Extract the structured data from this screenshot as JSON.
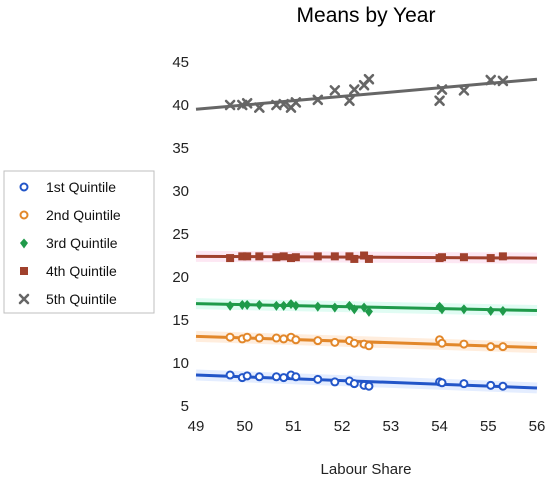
{
  "chart_data": {
    "type": "scatter",
    "title": "Means by Year",
    "xlabel": "Labour Share",
    "ylabel": "",
    "xlim": [
      49,
      56
    ],
    "ylim": [
      5,
      45
    ],
    "xticks": [
      "49",
      "50",
      "51",
      "52",
      "53",
      "54",
      "55",
      "56"
    ],
    "yticks": [
      "5",
      "10",
      "15",
      "20",
      "25",
      "30",
      "35",
      "40",
      "45"
    ],
    "grid": false,
    "legend_position": "left",
    "series": [
      {
        "name": "1st Quintile",
        "marker": "circle-open",
        "color": "#2255c8",
        "trend": [
          [
            49,
            8.6
          ],
          [
            56,
            7.1
          ]
        ],
        "points": [
          [
            49.7,
            8.6
          ],
          [
            49.95,
            8.3
          ],
          [
            50.05,
            8.5
          ],
          [
            50.3,
            8.4
          ],
          [
            50.65,
            8.4
          ],
          [
            50.8,
            8.3
          ],
          [
            50.95,
            8.6
          ],
          [
            51.05,
            8.4
          ],
          [
            51.5,
            8.1
          ],
          [
            51.85,
            7.8
          ],
          [
            52.15,
            7.9
          ],
          [
            52.25,
            7.6
          ],
          [
            52.45,
            7.4
          ],
          [
            52.55,
            7.3
          ],
          [
            54.0,
            7.8
          ],
          [
            54.05,
            7.7
          ],
          [
            54.5,
            7.6
          ],
          [
            55.05,
            7.4
          ],
          [
            55.3,
            7.3
          ]
        ]
      },
      {
        "name": "2nd Quintile",
        "marker": "circle-open",
        "color": "#e2872a",
        "trend": [
          [
            49,
            13.1
          ],
          [
            56,
            11.8
          ]
        ],
        "points": [
          [
            49.7,
            13.0
          ],
          [
            49.95,
            12.8
          ],
          [
            50.05,
            13.0
          ],
          [
            50.3,
            12.9
          ],
          [
            50.65,
            12.9
          ],
          [
            50.8,
            12.8
          ],
          [
            50.95,
            13.0
          ],
          [
            51.05,
            12.7
          ],
          [
            51.5,
            12.6
          ],
          [
            51.85,
            12.4
          ],
          [
            52.15,
            12.6
          ],
          [
            52.25,
            12.3
          ],
          [
            52.45,
            12.2
          ],
          [
            52.55,
            12.0
          ],
          [
            54.0,
            12.7
          ],
          [
            54.05,
            12.3
          ],
          [
            54.5,
            12.2
          ],
          [
            55.05,
            11.9
          ],
          [
            55.3,
            11.9
          ]
        ]
      },
      {
        "name": "3rd Quintile",
        "marker": "diamond",
        "color": "#1f9a4a",
        "trend": [
          [
            49,
            16.9
          ],
          [
            56,
            16.1
          ]
        ],
        "points": [
          [
            49.7,
            16.7
          ],
          [
            49.95,
            16.8
          ],
          [
            50.05,
            16.8
          ],
          [
            50.3,
            16.8
          ],
          [
            50.65,
            16.7
          ],
          [
            50.8,
            16.7
          ],
          [
            50.95,
            16.9
          ],
          [
            51.05,
            16.7
          ],
          [
            51.5,
            16.6
          ],
          [
            51.85,
            16.5
          ],
          [
            52.15,
            16.7
          ],
          [
            52.25,
            16.3
          ],
          [
            52.45,
            16.5
          ],
          [
            52.55,
            16.0
          ],
          [
            54.0,
            16.6
          ],
          [
            54.05,
            16.3
          ],
          [
            54.5,
            16.3
          ],
          [
            55.05,
            16.1
          ],
          [
            55.3,
            16.1
          ]
        ]
      },
      {
        "name": "4th Quintile",
        "marker": "square",
        "color": "#a0412d",
        "trend": [
          [
            49,
            22.4
          ],
          [
            56,
            22.2
          ]
        ],
        "points": [
          [
            49.7,
            22.2
          ],
          [
            49.95,
            22.4
          ],
          [
            50.05,
            22.4
          ],
          [
            50.3,
            22.4
          ],
          [
            50.65,
            22.3
          ],
          [
            50.8,
            22.4
          ],
          [
            50.95,
            22.2
          ],
          [
            51.05,
            22.3
          ],
          [
            51.5,
            22.4
          ],
          [
            51.85,
            22.4
          ],
          [
            52.15,
            22.4
          ],
          [
            52.25,
            22.1
          ],
          [
            52.45,
            22.5
          ],
          [
            52.55,
            22.1
          ],
          [
            54.0,
            22.2
          ],
          [
            54.05,
            22.3
          ],
          [
            54.5,
            22.3
          ],
          [
            55.05,
            22.2
          ],
          [
            55.3,
            22.4
          ]
        ]
      },
      {
        "name": "5th Quintile",
        "marker": "x",
        "color": "#666666",
        "trend": [
          [
            49,
            39.5
          ],
          [
            56,
            43.0
          ]
        ],
        "points": [
          [
            49.7,
            40.0
          ],
          [
            49.95,
            40.0
          ],
          [
            50.05,
            40.2
          ],
          [
            50.3,
            39.7
          ],
          [
            50.65,
            40.0
          ],
          [
            50.8,
            40.1
          ],
          [
            50.95,
            39.7
          ],
          [
            51.05,
            40.3
          ],
          [
            51.5,
            40.6
          ],
          [
            51.85,
            41.7
          ],
          [
            52.15,
            40.5
          ],
          [
            52.25,
            41.8
          ],
          [
            52.45,
            42.3
          ],
          [
            52.55,
            43.0
          ],
          [
            54.0,
            40.5
          ],
          [
            54.05,
            41.8
          ],
          [
            54.5,
            41.7
          ],
          [
            55.05,
            42.9
          ],
          [
            55.3,
            42.8
          ]
        ]
      }
    ]
  }
}
